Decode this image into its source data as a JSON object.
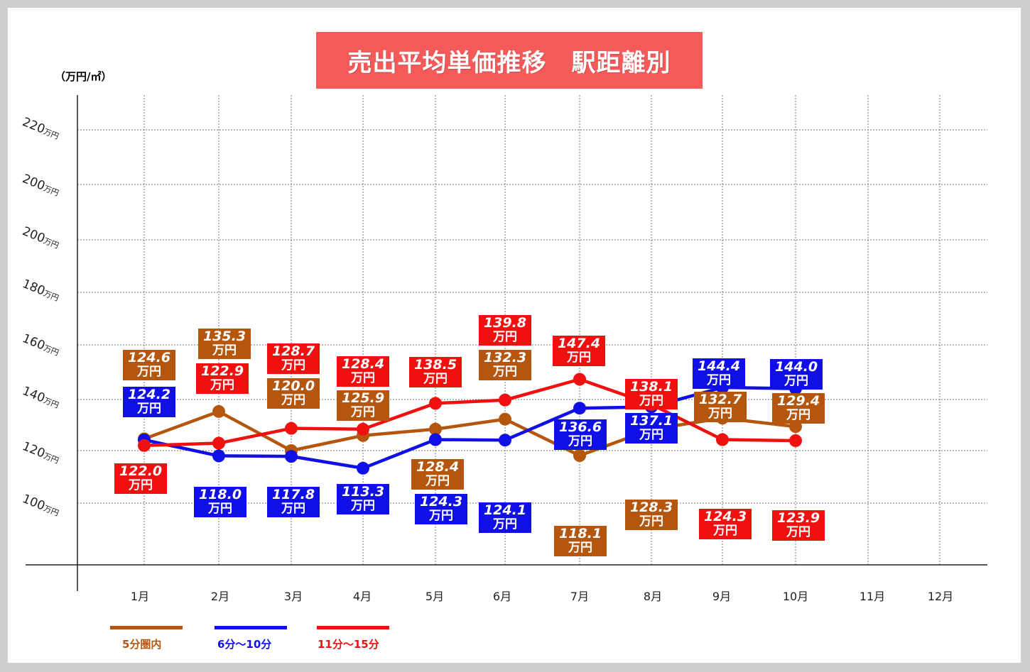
{
  "title": "売出平均単価推移　駅距離別",
  "unit_label": "（万円/㎡）",
  "colors": {
    "background": "#cfcfcf",
    "title_bg": "#f45a5a",
    "brown": "#b5560f",
    "blue": "#1010e6",
    "red": "#f01010"
  },
  "chart_data": {
    "type": "line",
    "title": "売出平均単価推移　駅距離別",
    "ylabel": "（万円/㎡）",
    "y_tick_labels": [
      {
        "value": "100",
        "unit": "万円"
      },
      {
        "value": "120",
        "unit": "万円"
      },
      {
        "value": "140",
        "unit": "万円"
      },
      {
        "value": "160",
        "unit": "万円"
      },
      {
        "value": "180",
        "unit": "万円"
      },
      {
        "value": "200",
        "unit": "万円"
      },
      {
        "value": "200",
        "unit": "万円"
      },
      {
        "value": "220",
        "unit": "万円"
      }
    ],
    "categories": [
      "1月",
      "2月",
      "3月",
      "4月",
      "5月",
      "6月",
      "7月",
      "8月",
      "9月",
      "10月",
      "11月",
      "12月"
    ],
    "grid": true,
    "legend_position": "bottom-left",
    "value_unit": "万円",
    "series": [
      {
        "name": "5分圏内",
        "color": "brown",
        "values": [
          124.6,
          135.3,
          120.0,
          125.9,
          128.4,
          132.3,
          118.1,
          128.3,
          132.7,
          129.4,
          null,
          null
        ]
      },
      {
        "name": "6分～10分",
        "color": "blue",
        "values": [
          124.2,
          118.0,
          117.8,
          113.3,
          124.3,
          124.1,
          136.6,
          137.1,
          144.4,
          144.0,
          null,
          null
        ]
      },
      {
        "name": "11分～15分",
        "color": "red",
        "values": [
          122.0,
          122.9,
          128.7,
          128.4,
          138.5,
          139.8,
          147.4,
          138.1,
          124.3,
          123.9,
          null,
          null
        ]
      }
    ]
  }
}
